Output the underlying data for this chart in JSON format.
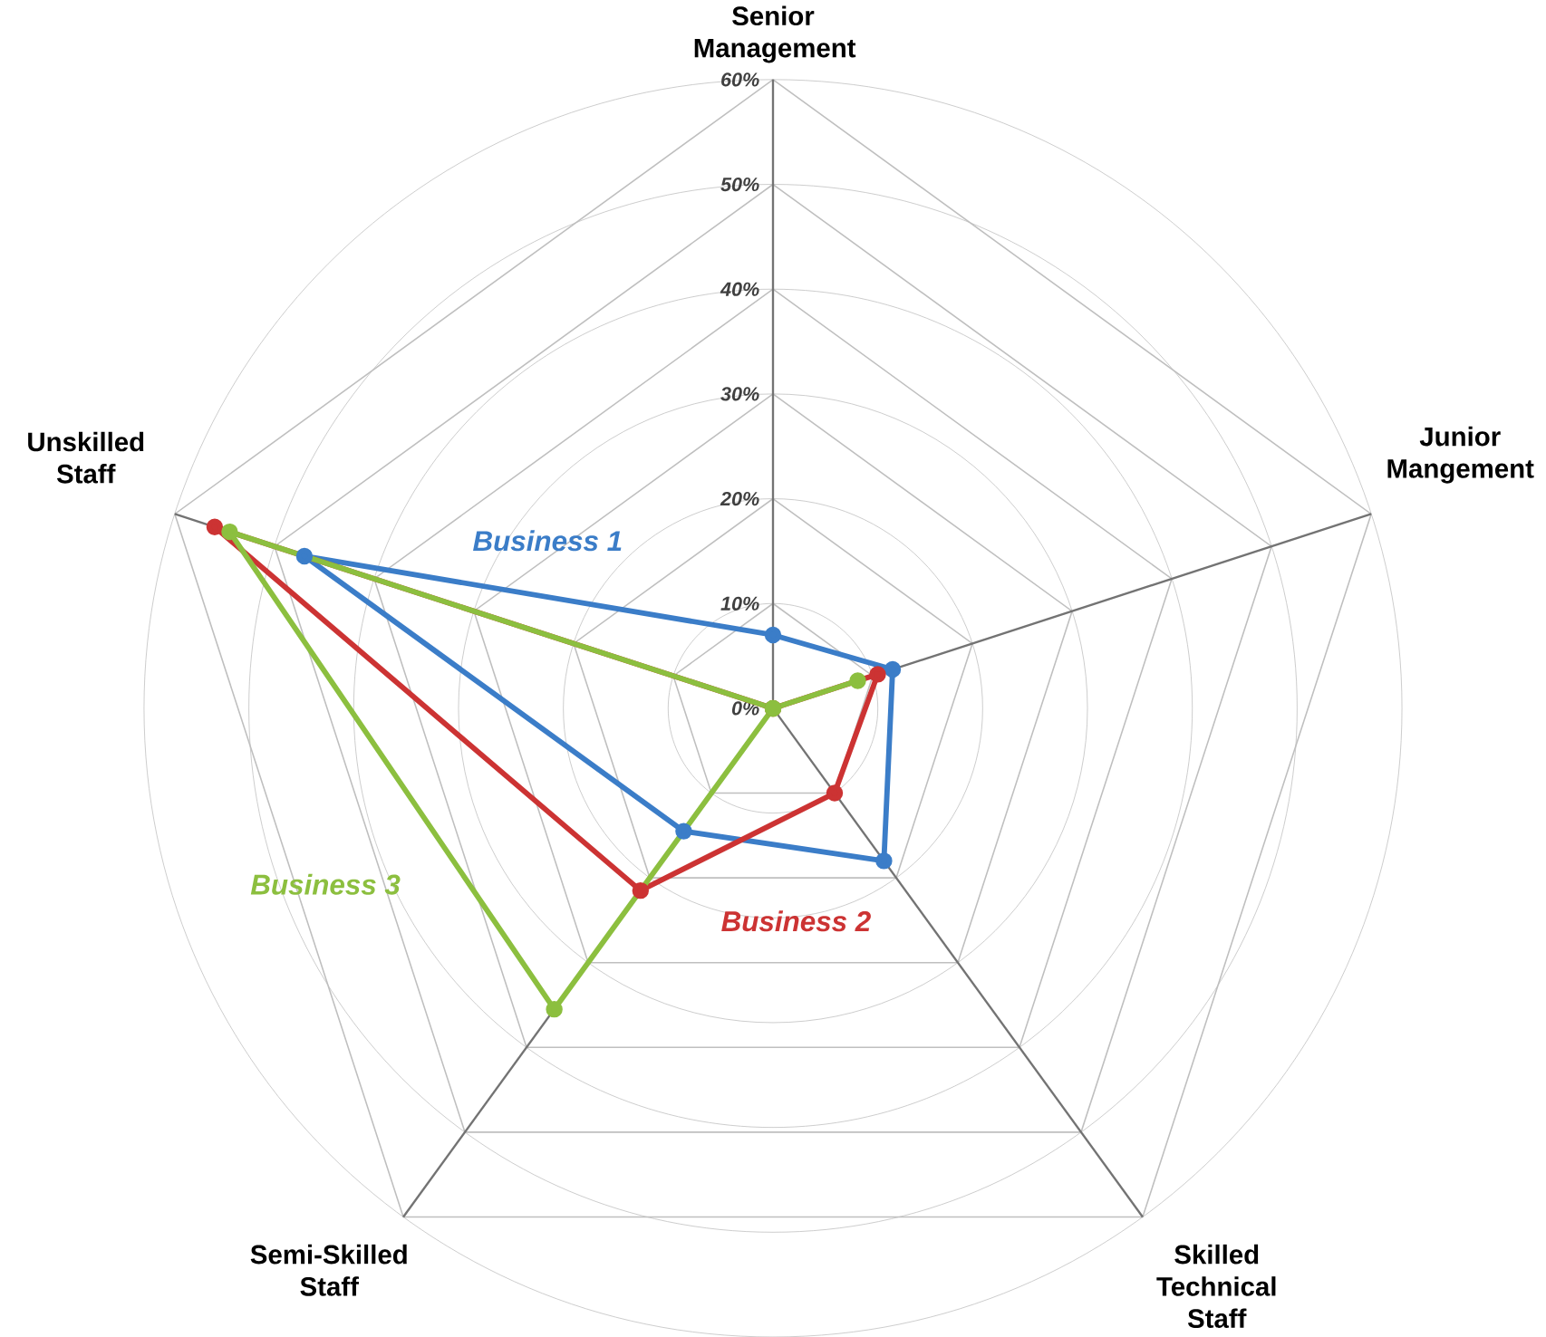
{
  "chart_data": {
    "type": "radar",
    "categories": [
      "Senior Management",
      "Junior Mangement",
      "Skilled Technical Staff",
      "Semi-Skilled Staff",
      "Unskilled Staff"
    ],
    "series": [
      {
        "name": "Business 1",
        "color": "#3b7dc8",
        "values": [
          7,
          12,
          18,
          14.5,
          47
        ]
      },
      {
        "name": "Business 2",
        "color": "#cc3333",
        "values": [
          0,
          10.5,
          10,
          21.5,
          56
        ]
      },
      {
        "name": "Business 3",
        "color": "#8cbf3f",
        "values": [
          0,
          8.5,
          0,
          35.5,
          54.5
        ]
      }
    ],
    "ylim": [
      0,
      60
    ],
    "yticks": [
      {
        "value": 0,
        "label": "0%"
      },
      {
        "value": 10,
        "label": "10%"
      },
      {
        "value": 20,
        "label": "20%"
      },
      {
        "value": 30,
        "label": "30%"
      },
      {
        "value": 40,
        "label": "40%"
      },
      {
        "value": 50,
        "label": "50%"
      },
      {
        "value": 60,
        "label": "60%"
      }
    ],
    "marker": "circle",
    "line_style": "solid",
    "grid": true,
    "legend": false
  }
}
